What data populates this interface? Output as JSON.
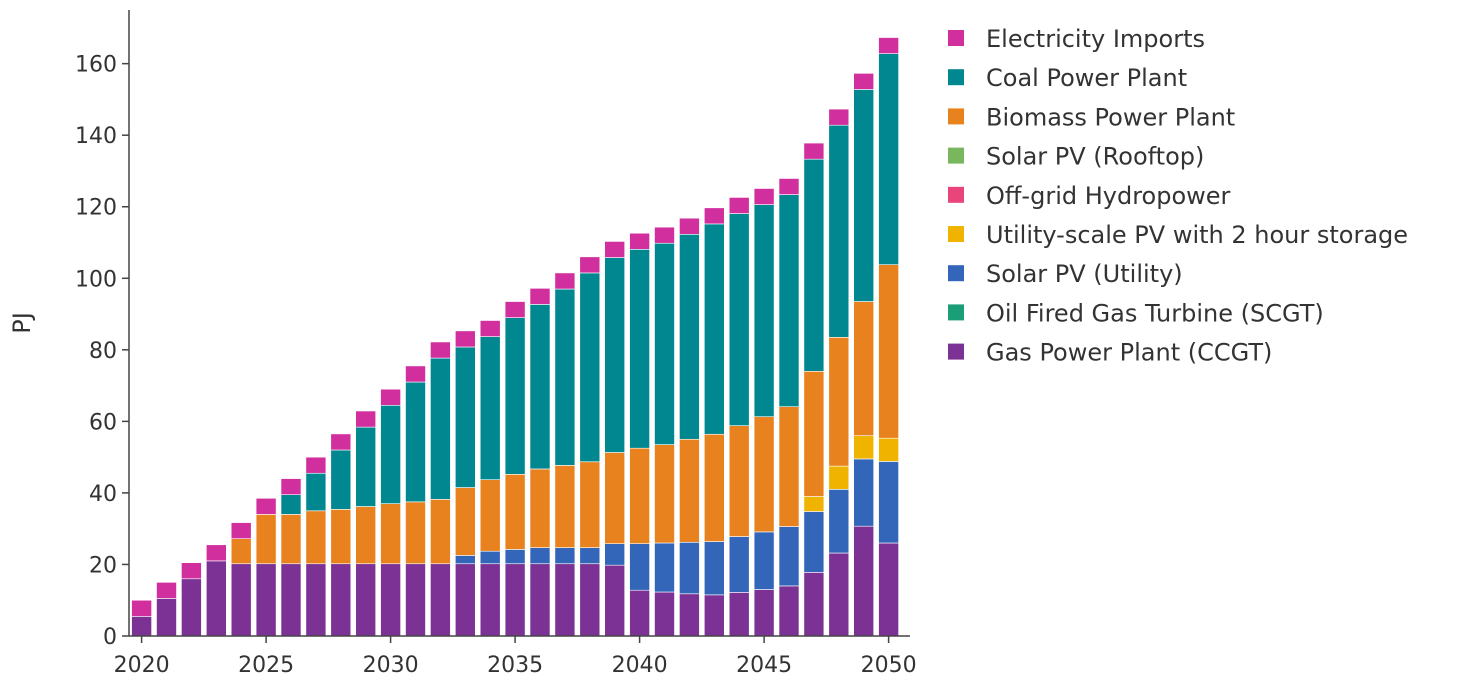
{
  "chart_data": {
    "type": "bar",
    "stacked": true,
    "title": "",
    "xlabel": "",
    "ylabel": "PJ",
    "ylim": [
      0,
      175
    ],
    "yticks": [
      0,
      20,
      40,
      60,
      80,
      100,
      120,
      140,
      160
    ],
    "xticks": [
      2020,
      2025,
      2030,
      2035,
      2040,
      2045,
      2050
    ],
    "grid": false,
    "legend_position": "right",
    "x": [
      2020,
      2021,
      2022,
      2023,
      2024,
      2025,
      2026,
      2027,
      2028,
      2029,
      2030,
      2031,
      2032,
      2033,
      2034,
      2035,
      2036,
      2037,
      2038,
      2039,
      2040,
      2041,
      2042,
      2043,
      2044,
      2045,
      2046,
      2047,
      2048,
      2049,
      2050
    ],
    "series": [
      {
        "name": "Gas Power Plant (CCGT)",
        "color": "#7b3294",
        "values": [
          5.5,
          10.5,
          16,
          21,
          20.2,
          20.2,
          20.2,
          20.2,
          20.2,
          20.2,
          20.2,
          20.2,
          20.2,
          20.2,
          20.2,
          20.2,
          20.2,
          20.2,
          20.2,
          19.8,
          12.8,
          12.3,
          11.8,
          11.5,
          12.2,
          13,
          14,
          17.8,
          23.2,
          30.7,
          26
        ]
      },
      {
        "name": "Oil Fired Gas Turbine (SCGT)",
        "color": "#1b9e77",
        "values": [
          0,
          0,
          0,
          0,
          0,
          0,
          0,
          0,
          0,
          0,
          0,
          0,
          0,
          0,
          0,
          0,
          0,
          0,
          0,
          0,
          0,
          0,
          0,
          0,
          0,
          0,
          0,
          0,
          0,
          0,
          0
        ]
      },
      {
        "name": "Solar PV (Utility)",
        "color": "#3366b8",
        "values": [
          0,
          0,
          0,
          0,
          0,
          0,
          0,
          0,
          0,
          0,
          0,
          0,
          0,
          2.3,
          3.5,
          4,
          4.5,
          4.5,
          4.5,
          6,
          13,
          13.7,
          14.4,
          14.9,
          15.6,
          16.1,
          16.6,
          17,
          17.8,
          18.8,
          22.8
        ]
      },
      {
        "name": "Utility-scale PV with 2 hour storage",
        "color": "#f0b400",
        "values": [
          0,
          0,
          0,
          0,
          0,
          0,
          0,
          0,
          0,
          0,
          0,
          0,
          0,
          0,
          0,
          0,
          0,
          0,
          0,
          0,
          0,
          0,
          0,
          0,
          0,
          0,
          0,
          4.2,
          6.5,
          6.5,
          6.5
        ]
      },
      {
        "name": "Off-grid Hydropower",
        "color": "#e8457a",
        "values": [
          0,
          0,
          0,
          0,
          0,
          0,
          0,
          0,
          0,
          0,
          0,
          0,
          0,
          0,
          0,
          0,
          0,
          0,
          0,
          0,
          0,
          0,
          0,
          0,
          0,
          0,
          0,
          0,
          0,
          0,
          0
        ]
      },
      {
        "name": "Solar PV (Rooftop)",
        "color": "#7ab65c",
        "values": [
          0,
          0,
          0,
          0,
          0,
          0,
          0,
          0,
          0,
          0,
          0,
          0,
          0,
          0,
          0,
          0,
          0,
          0,
          0,
          0,
          0,
          0,
          0,
          0,
          0,
          0,
          0,
          0,
          0,
          0,
          0
        ]
      },
      {
        "name": "Biomass Power Plant",
        "color": "#e8821e",
        "values": [
          0,
          0,
          0,
          0,
          7,
          13.8,
          13.8,
          14.8,
          15.2,
          16,
          16.8,
          17.3,
          18,
          19,
          20,
          21,
          22,
          23,
          24,
          25.5,
          26.7,
          27.5,
          28.8,
          30,
          31,
          32.2,
          33.5,
          35,
          36,
          37.5,
          48.5
        ]
      },
      {
        "name": "Coal Power Plant",
        "color": "#00878f",
        "values": [
          0,
          0,
          0,
          0,
          0,
          0,
          5.5,
          10.5,
          16.6,
          22.2,
          27.5,
          33.5,
          39.5,
          39.3,
          40,
          43.8,
          46,
          49.3,
          52.8,
          54.5,
          55.6,
          56.3,
          57.3,
          58.8,
          59.3,
          59.3,
          59.3,
          59.3,
          59.3,
          59.3,
          59
        ]
      },
      {
        "name": "Electricity Imports",
        "color": "#d12e9e",
        "values": [
          4.5,
          4.5,
          4.5,
          4.5,
          4.5,
          4.5,
          4.5,
          4.5,
          4.5,
          4.5,
          4.5,
          4.5,
          4.5,
          4.5,
          4.5,
          4.5,
          4.5,
          4.5,
          4.5,
          4.5,
          4.5,
          4.5,
          4.5,
          4.5,
          4.5,
          4.5,
          4.5,
          4.5,
          4.5,
          4.5,
          4.5
        ]
      }
    ],
    "legend": [
      {
        "label": "Electricity Imports",
        "color": "#d12e9e"
      },
      {
        "label": "Coal Power Plant",
        "color": "#00878f"
      },
      {
        "label": "Biomass Power Plant",
        "color": "#e8821e"
      },
      {
        "label": "Solar PV (Rooftop)",
        "color": "#7ab65c"
      },
      {
        "label": "Off-grid Hydropower",
        "color": "#e8457a"
      },
      {
        "label": "Utility-scale PV with 2 hour storage",
        "color": "#f0b400"
      },
      {
        "label": "Solar PV (Utility)",
        "color": "#3366b8"
      },
      {
        "label": "Oil Fired Gas Turbine (SCGT)",
        "color": "#1b9e77"
      },
      {
        "label": "Gas Power Plant (CCGT)",
        "color": "#7b3294"
      }
    ]
  }
}
